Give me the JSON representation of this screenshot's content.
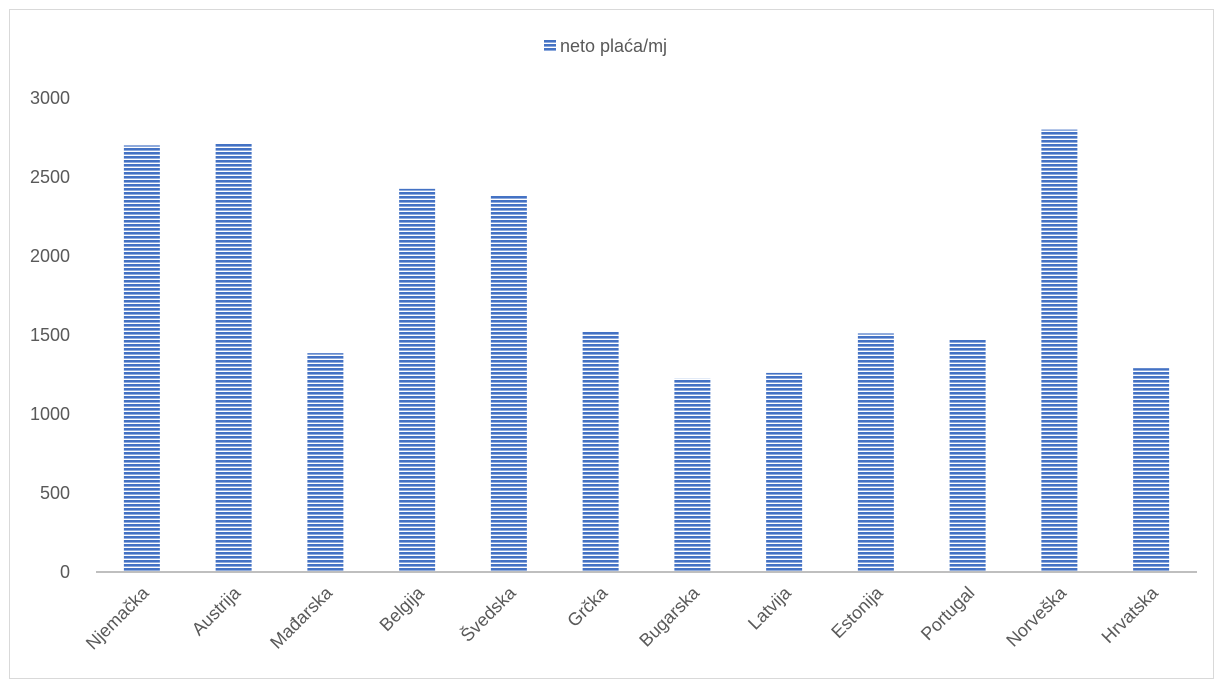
{
  "chart_data": {
    "type": "bar",
    "categories": [
      "Njemačka",
      "Austrija",
      "Mađarska",
      "Belgija",
      "Švedska",
      "Grčka",
      "Bugarska",
      "Latvija",
      "Estonija",
      "Portugal",
      "Norveška",
      "Hrvatska"
    ],
    "series": [
      {
        "name": "neto plaća/mj",
        "values": [
          2700,
          2715,
          1385,
          2425,
          2380,
          1520,
          1225,
          1260,
          1510,
          1470,
          2800,
          1290
        ],
        "color": "#4472c4"
      }
    ],
    "yticks": [
      "0",
      "500",
      "1000",
      "1500",
      "2000",
      "2500",
      "3000"
    ],
    "ylim": [
      0,
      3000
    ],
    "legend_position": "top",
    "grid": false,
    "bar_pattern": "horizontal-stripes"
  }
}
